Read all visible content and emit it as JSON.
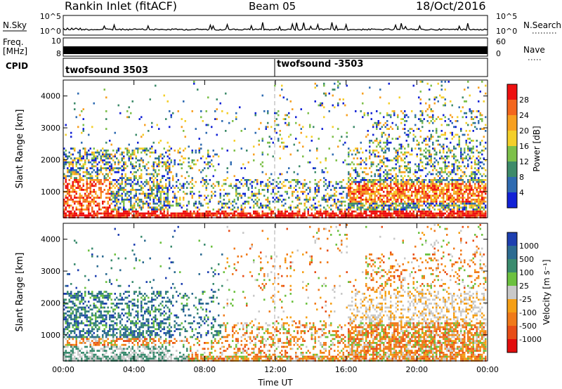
{
  "header": {
    "station": "Rankin Inlet (fitACF)",
    "beam": "Beam 05",
    "date": "18/Oct/2016"
  },
  "top_panels": {
    "nsky_label": "N.Sky",
    "nsky_ticks": [
      "10^5",
      "10^0"
    ],
    "nsearch_label": "N.Search",
    "nsearch_ticks": [
      "10^5",
      "10^0"
    ],
    "freq_label_1": "Freq.",
    "freq_label_2": "[MHz]",
    "freq_ticks": [
      "10",
      "8"
    ],
    "nave_label": "Nave",
    "nave_ticks": [
      "60",
      "0"
    ],
    "cpid_label": "CPID",
    "cpid_segments": [
      {
        "label": "twofsound 3503",
        "start_hour": 0
      },
      {
        "label": "twofsound -3503",
        "start_hour": 12
      }
    ]
  },
  "chart_data": [
    {
      "type": "heatmap",
      "panel": "power",
      "ylabel": "Slant Range [km]",
      "ylim": [
        180,
        4500
      ],
      "yticks": [
        1000,
        2000,
        3000,
        4000
      ],
      "xlim": [
        0,
        24
      ],
      "xticks": [
        "00:00",
        "04:00",
        "08:00",
        "12:00",
        "16:00",
        "20:00",
        "00:00"
      ],
      "colorbar": {
        "label": "Power [dB]",
        "ticks": [
          "28",
          "24",
          "20",
          "16",
          "12",
          "8",
          "4"
        ],
        "colors": [
          "#ee1010",
          "#f3661e",
          "#f7a021",
          "#f4cf2a",
          "#7dc04a",
          "#3e8b6a",
          "#2f6bb1",
          "#1222d6"
        ]
      },
      "description_regions": [
        {
          "hours": [
            0,
            2.6
          ],
          "range_km": [
            200,
            2000
          ],
          "level": "high"
        },
        {
          "hours": [
            16,
            24
          ],
          "range_km": [
            700,
            1400
          ],
          "level": "high"
        }
      ]
    },
    {
      "type": "heatmap",
      "panel": "velocity",
      "ylabel": "Slant Range [km]",
      "ylim": [
        180,
        4500
      ],
      "yticks": [
        1000,
        2000,
        3000,
        4000
      ],
      "xlim": [
        0,
        24
      ],
      "xticks": [
        "00:00",
        "04:00",
        "08:00",
        "12:00",
        "16:00",
        "20:00",
        "00:00"
      ],
      "xlabel": "Time UT",
      "colorbar": {
        "label": "Velocity [m s⁻¹]",
        "ticks": [
          "1000",
          "500",
          "100",
          "25",
          "-25",
          "-100",
          "-500",
          "-1000"
        ],
        "colors": [
          "#1d3fb0",
          "#2c6b91",
          "#3a8b6e",
          "#6cc13f",
          "#c9c9c9",
          "#f59f16",
          "#f07a1a",
          "#e84d17",
          "#e20d0d"
        ]
      }
    }
  ]
}
